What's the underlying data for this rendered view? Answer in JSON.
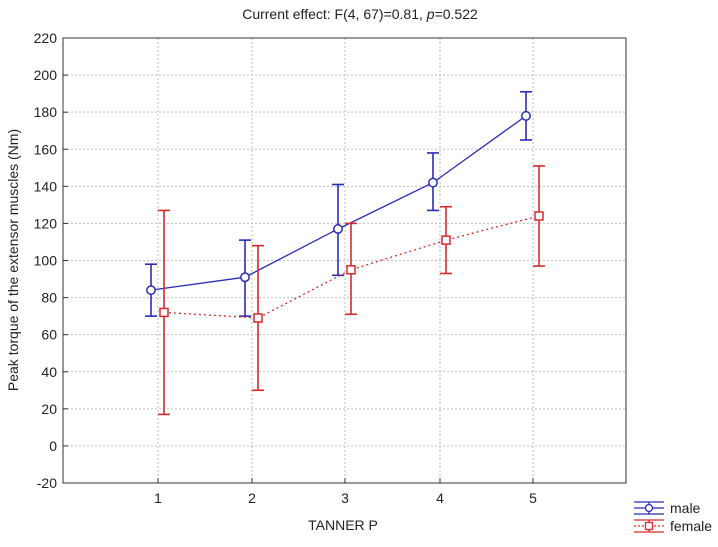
{
  "chart_data": {
    "type": "line",
    "title_prefix": "Current effect: F(4, 67)=0.81, ",
    "title_p": "p",
    "title_suffix": "=0.522",
    "xlabel": "TANNER P",
    "ylabel": "Peak torque of the extensor muscles (Nm)",
    "categories": [
      "1",
      "2",
      "3",
      "4",
      "5"
    ],
    "ylim": [
      -20,
      220
    ],
    "yticks": [
      -20,
      0,
      20,
      40,
      60,
      80,
      100,
      120,
      140,
      160,
      180,
      200,
      220
    ],
    "grid": true,
    "legend_position": "bottom-right",
    "series": [
      {
        "name": "male",
        "color": "#2b2bb5",
        "marker": "circle",
        "line_style": "solid",
        "values": [
          84,
          91,
          117,
          142,
          178
        ],
        "err_low": [
          70,
          70,
          92,
          127,
          165
        ],
        "err_high": [
          98,
          111,
          141,
          158,
          191
        ]
      },
      {
        "name": "female",
        "color": "#d62a2a",
        "marker": "square",
        "line_style": "dotted",
        "values": [
          72,
          69,
          95,
          111,
          124
        ],
        "err_low": [
          17,
          30,
          71,
          93,
          97
        ],
        "err_high": [
          127,
          108,
          120,
          129,
          151
        ]
      }
    ]
  }
}
